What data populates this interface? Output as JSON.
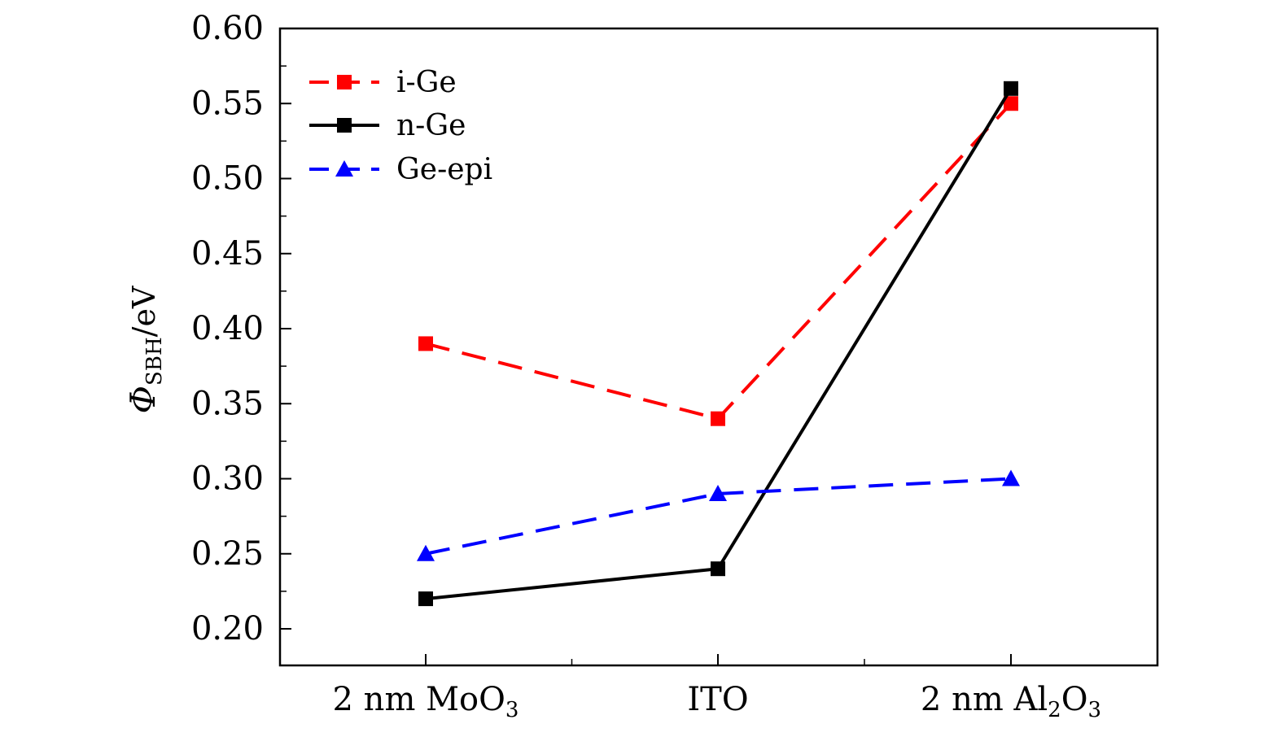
{
  "chart_data": {
    "type": "line",
    "categories": [
      {
        "main": "2 nm MoO",
        "sub": "3",
        "tail": ""
      },
      {
        "main": "ITO",
        "sub": "",
        "tail": ""
      },
      {
        "main": "2 nm Al",
        "sub": "2",
        "tail": "O",
        "sub2": "3"
      }
    ],
    "ylabel": {
      "symbol": "Φ",
      "sub": "SBH",
      "unit": "/eV"
    },
    "ylim": [
      0.18,
      0.6
    ],
    "yticks": [
      "0.20",
      "0.25",
      "0.30",
      "0.35",
      "0.40",
      "0.45",
      "0.50",
      "0.55",
      "0.60"
    ],
    "series": [
      {
        "name": "i-Ge",
        "values": [
          0.39,
          0.34,
          0.55
        ],
        "color": "#ff0000",
        "marker": "square",
        "dashed": true
      },
      {
        "name": "n-Ge",
        "values": [
          0.22,
          0.24,
          0.56
        ],
        "color": "#000000",
        "marker": "square",
        "dashed": false
      },
      {
        "name": "Ge-epi",
        "values": [
          0.25,
          0.29,
          0.3
        ],
        "color": "#0000ff",
        "marker": "triangle",
        "dashed": true
      }
    ],
    "legend_position": "top-left",
    "grid": false
  }
}
